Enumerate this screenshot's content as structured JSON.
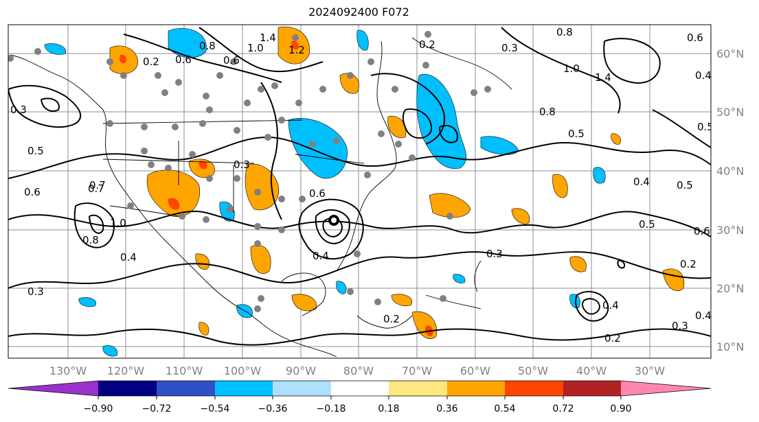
{
  "title": "2024092400 F072",
  "map": {
    "lon_labels": [
      "130°W",
      "120°W",
      "110°W",
      "100°W",
      "90°W",
      "80°W",
      "70°W",
      "60°W",
      "50°W",
      "40°W",
      "30°W"
    ],
    "lat_labels": [
      "60°N",
      "50°N",
      "40°N",
      "30°N",
      "20°N",
      "10°N"
    ],
    "contour_labels": [
      "1.4",
      "1.0",
      "1.2",
      "0.6",
      "0.8",
      "0.2",
      "0.6",
      "0.8",
      "1.0",
      "1.4",
      "0.6",
      "0.4",
      "0.3",
      "0.5",
      "0.7",
      "0.8",
      "0.5",
      "0.6",
      "0.4",
      "0.3",
      "0.5",
      "0.4",
      "0.2",
      "0.4",
      "0.3",
      "0.2",
      "0.5",
      "0.6",
      "0.2",
      "0.3",
      "0.4",
      "0.5",
      "0.4",
      "0.3",
      "0.2",
      "0.3",
      "1.0",
      "0.8",
      "0.6",
      "0.7"
    ],
    "colors": {
      "land_outline": "#000000",
      "grid": "#808080",
      "station": "#808080"
    }
  },
  "colorbar": {
    "ticks": [
      "−0.90",
      "−0.72",
      "−0.54",
      "−0.36",
      "−0.18",
      "0.18",
      "0.36",
      "0.54",
      "0.72",
      "0.90"
    ],
    "colors": [
      "#9932cc",
      "#000080",
      "#3050c8",
      "#00bfff",
      "#b0e0ff",
      "#ffffff",
      "#ffe680",
      "#ffa500",
      "#ff4500",
      "#b22222",
      "#ff88b0"
    ]
  }
}
